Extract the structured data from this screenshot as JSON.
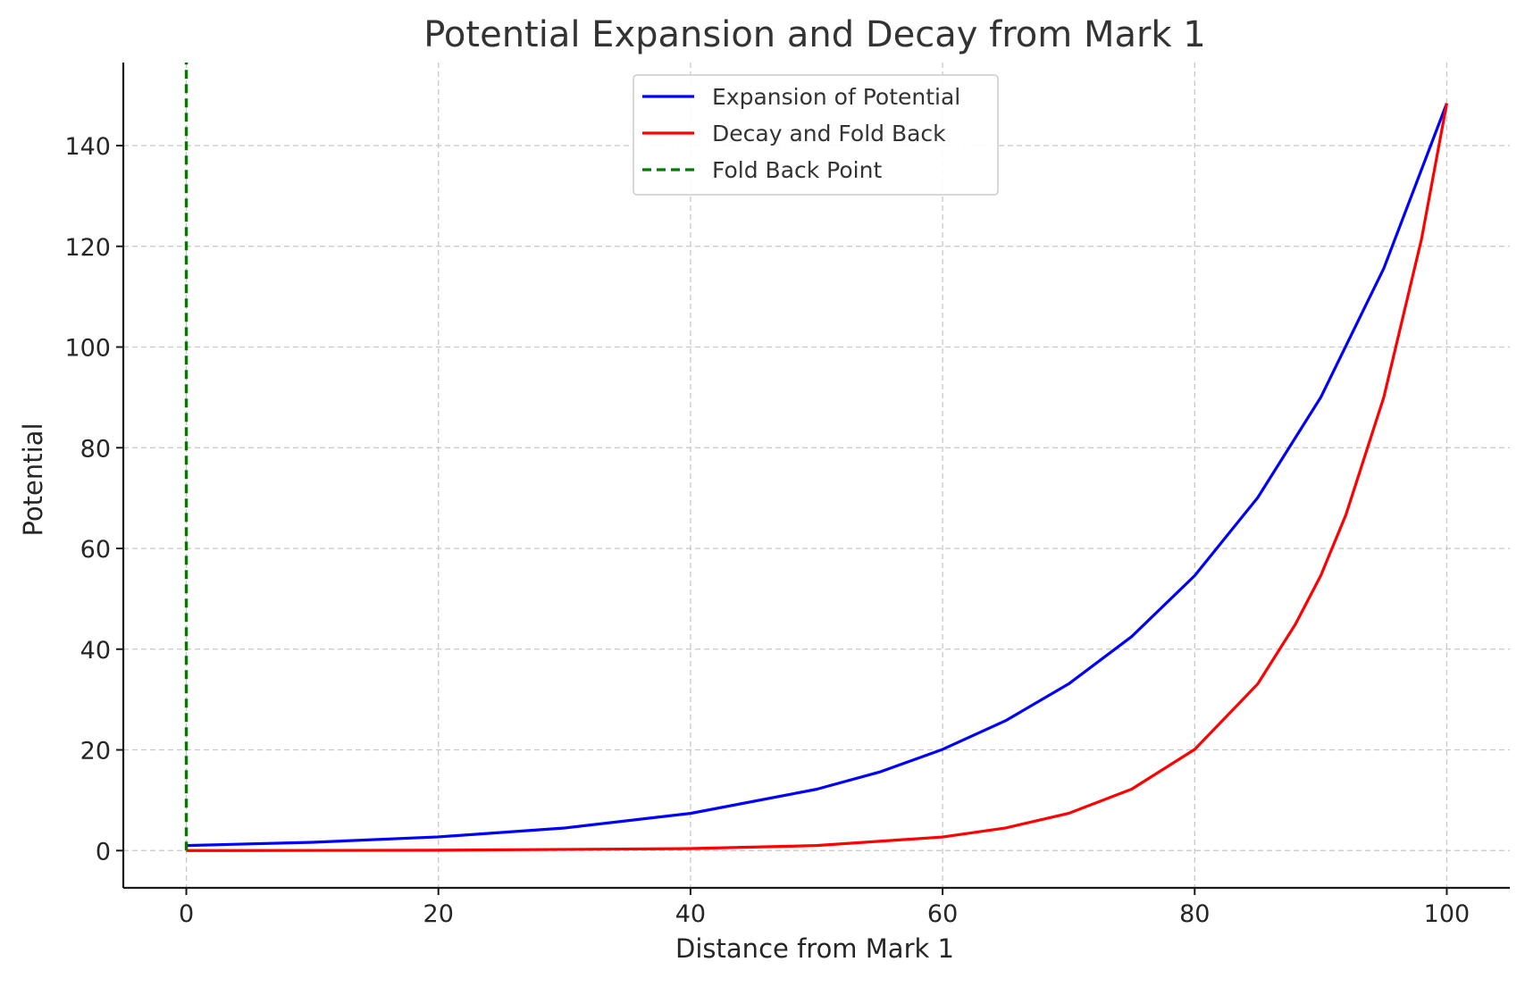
{
  "chart_data": {
    "type": "line",
    "title": "Potential Expansion and Decay from Mark 1",
    "xlabel": "Distance from Mark 1",
    "ylabel": "Potential",
    "xlim": [
      -5,
      105
    ],
    "ylim": [
      -7.4,
      156.5
    ],
    "xticks": [
      0,
      20,
      40,
      60,
      80,
      100
    ],
    "yticks": [
      0,
      20,
      40,
      60,
      80,
      100,
      120,
      140
    ],
    "grid": true,
    "legend_position": "upper-center",
    "series": [
      {
        "name": "Expansion of Potential",
        "color": "#0000ff",
        "style": "solid",
        "x": [
          0,
          10,
          20,
          30,
          40,
          50,
          55,
          60,
          65,
          70,
          75,
          80,
          85,
          90,
          95,
          100
        ],
        "y": [
          1.0,
          1.65,
          2.72,
          4.48,
          7.39,
          12.18,
          15.6,
          20.1,
          25.8,
          33.1,
          42.5,
          54.6,
          70.1,
          90.0,
          115.6,
          148.4
        ]
      },
      {
        "name": "Decay and Fold Back",
        "color": "#ff0000",
        "style": "solid",
        "x": [
          0,
          20,
          40,
          50,
          60,
          65,
          70,
          75,
          80,
          85,
          88,
          90,
          92,
          95,
          98,
          100
        ],
        "y": [
          0.0,
          0.07,
          0.4,
          1.0,
          2.7,
          4.5,
          7.4,
          12.2,
          20.1,
          33.1,
          45.0,
          54.6,
          66.7,
          90.0,
          121.5,
          148.4
        ]
      },
      {
        "name": "Fold Back Point",
        "color": "#007a00",
        "style": "dashed",
        "x": [
          0,
          0
        ],
        "y": [
          0,
          156.5
        ]
      }
    ]
  }
}
